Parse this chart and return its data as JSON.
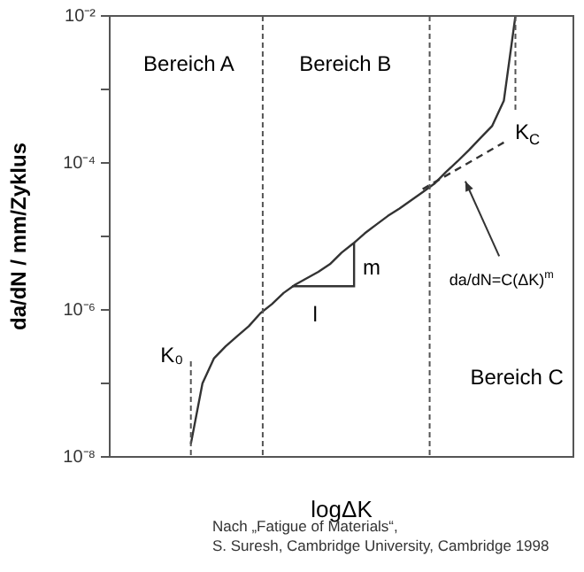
{
  "chart_data": {
    "type": "line",
    "xlabel": "logΔK",
    "ylabel": "da/dN / mm/Zyklus",
    "ylim": [
      1e-08,
      0.01
    ],
    "log": "y",
    "tick_labels": "y",
    "grid": false,
    "legend": false,
    "marker": "none",
    "yticks": [
      {
        "value": 1e-08,
        "label": "10⁻⁸"
      },
      {
        "value": 1e-07,
        "label": null
      },
      {
        "value": 1e-06,
        "label": "10⁻⁶"
      },
      {
        "value": 1e-05,
        "label": null
      },
      {
        "value": 0.0001,
        "label": "10⁻⁴"
      },
      {
        "value": 0.001,
        "label": null
      },
      {
        "value": 0.01,
        "label": "10⁻²"
      }
    ],
    "categories": [
      null,
      null,
      null,
      null,
      null,
      null,
      null,
      null,
      null,
      null,
      null,
      null,
      null,
      null,
      null,
      null,
      null,
      null,
      null,
      null,
      null,
      null,
      null,
      null,
      null,
      null,
      null,
      null,
      null,
      null,
      null,
      null,
      null,
      null,
      null,
      null,
      null,
      null,
      null,
      null,
      null
    ],
    "series": [
      {
        "color": "#333333",
        "line_style": "solid",
        "values": [
          null,
          null,
          null,
          null,
          null,
          null,
          null,
          1.5e-08,
          1e-07,
          2.2e-07,
          3.2e-07,
          4.4e-07,
          6e-07,
          9e-07,
          1.2e-06,
          1.7e-06,
          2.2e-06,
          2.7e-06,
          3.3e-06,
          4.2e-06,
          6e-06,
          8e-06,
          1.1e-05,
          1.45e-05,
          1.9e-05,
          2.4e-05,
          3.1e-05,
          4e-05,
          5.2e-05,
          7.5e-05,
          0.000105,
          0.00015,
          0.00022,
          0.00032,
          0.0007,
          0.01,
          null,
          null,
          null,
          null,
          null
        ]
      },
      {
        "color": "#333333",
        "line_style": "dashed",
        "values": [
          null,
          null,
          null,
          null,
          null,
          null,
          null,
          null,
          null,
          null,
          null,
          null,
          null,
          null,
          null,
          null,
          null,
          null,
          null,
          null,
          null,
          null,
          null,
          null,
          null,
          null,
          null,
          4.4e-05,
          null,
          null,
          null,
          null,
          null,
          null,
          0.00019,
          null,
          null,
          null,
          null,
          null,
          null
        ]
      }
    ],
    "annotations": [
      "Bereich A",
      "Bereich B",
      "Bereich C",
      "K₀",
      "K$_{C}$",
      "m",
      "l",
      "da/dN=C(ΔK)$^{m}$",
      "Nach „Fatigue of Materials“,",
      "S. Suresh, Cambridge University, Cambridge 1998"
    ]
  }
}
